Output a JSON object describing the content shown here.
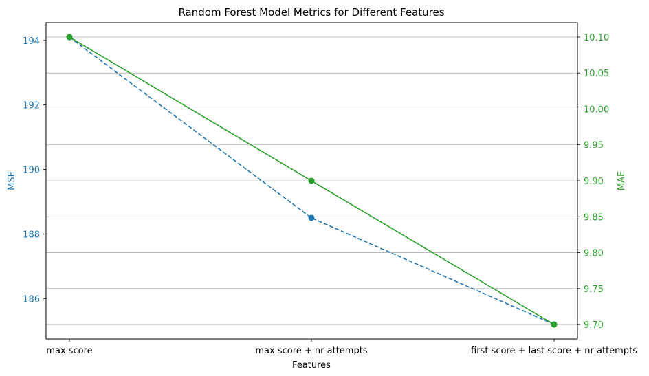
{
  "chart_data": {
    "type": "line",
    "title": "Random Forest Model Metrics for Different Features",
    "xlabel": "Features",
    "categories": [
      "max score",
      "max score + nr attempts",
      "first score + last score + nr attempts"
    ],
    "y_left": {
      "label": "MSE",
      "color": "#1f77b4",
      "ticks": [
        "186",
        "188",
        "190",
        "192",
        "194"
      ],
      "tick_values": [
        186,
        188,
        190,
        192,
        194
      ],
      "ylim": [
        184.75,
        194.55
      ]
    },
    "y_right": {
      "label": "MAE",
      "color": "#2ca02c",
      "ticks": [
        "9.70",
        "9.75",
        "9.80",
        "9.85",
        "9.90",
        "9.95",
        "10.00",
        "10.05",
        "10.10"
      ],
      "tick_values": [
        9.7,
        9.75,
        9.8,
        9.85,
        9.9,
        9.95,
        10.0,
        10.05,
        10.1
      ],
      "ylim": [
        9.68,
        10.12
      ]
    },
    "grid": "horizontal, right axis",
    "series": [
      {
        "axis": "left",
        "style": "dashed",
        "color": "#1f77b4",
        "values": [
          194.1,
          188.5,
          185.2
        ]
      },
      {
        "axis": "right",
        "style": "solid",
        "color": "#2ca02c",
        "values": [
          10.1,
          9.9,
          9.7
        ]
      }
    ]
  }
}
